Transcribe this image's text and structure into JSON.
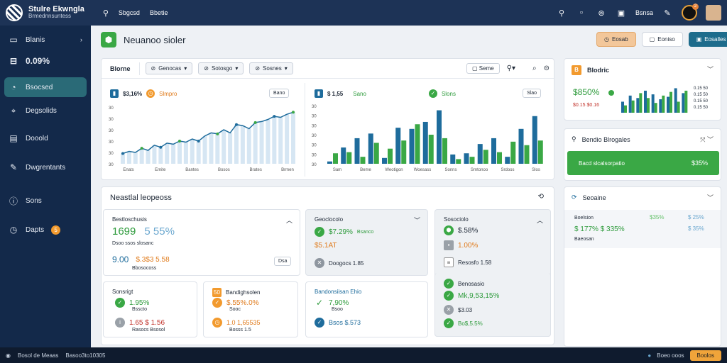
{
  "app": {
    "title": "Stulre Ekwngla",
    "subtitle": "Brmednnsuntess"
  },
  "topnav": [
    {
      "icon": "search-icon",
      "label": "Sbgcsd"
    },
    {
      "icon": "grid-icon",
      "label": "Bbetie"
    }
  ],
  "topbar_right": {
    "user_label": "Bsnsa",
    "notif_count": "2"
  },
  "sidebar": {
    "items": [
      {
        "icon": "folder-icon",
        "label": "Blanis"
      },
      {
        "icon": "inbox-icon",
        "label": "0.09%"
      },
      {
        "icon": "chart-icon",
        "label": "Bsocsed"
      },
      {
        "icon": "tag-icon",
        "label": "Degsolids"
      },
      {
        "icon": "calendar-icon",
        "label": "Dooold"
      },
      {
        "icon": "pen-icon",
        "label": "Dwgrentants"
      },
      {
        "icon": "info-icon",
        "label": "Sons"
      },
      {
        "icon": "clock-icon",
        "label": "Dapts",
        "badge": "5"
      }
    ]
  },
  "header": {
    "title": "Neuanoo sioler",
    "buttons": [
      "Eosab",
      "Eoniso",
      "Eosalles"
    ]
  },
  "charts_panel": {
    "tabs": [
      "Blorne"
    ],
    "selects": [
      "Genocas",
      "Sotosgo",
      "Sosnes"
    ],
    "button": "Seme"
  },
  "chart_data": [
    {
      "type": "area",
      "header_value": "$3,16%",
      "tag": "Slmpro",
      "pill": "Bano",
      "y_ticks": [
        "30",
        "30",
        "30",
        "30",
        "30",
        "30"
      ],
      "x_ticks": [
        "Enats",
        "Emite",
        "Bantes",
        "Bosos",
        "Brates",
        "Brmen"
      ],
      "values": [
        10,
        12,
        11,
        15,
        13,
        18,
        16,
        20,
        19,
        22,
        21,
        24,
        22,
        27,
        30,
        29,
        33,
        30,
        38,
        37,
        34,
        40,
        41,
        43,
        46,
        45,
        48,
        50
      ]
    },
    {
      "type": "bar",
      "header_value": "$ 1,55",
      "tag": "Sano",
      "tag2": "Slons",
      "pill": "Slao",
      "y_ticks": [
        "30",
        "30",
        "30",
        "30",
        "30",
        "30",
        "30"
      ],
      "x_ticks": [
        "Sam",
        "Beme",
        "Weotigon",
        "Woesass",
        "Sonns",
        "Srntonoo",
        "Srdoos",
        "Slos"
      ],
      "series": [
        {
          "name": "blue",
          "color": "#1e6c9c",
          "values": [
            2,
            14,
            22,
            26,
            5,
            31,
            30,
            36,
            46,
            8,
            9,
            17,
            22,
            6,
            30,
            41
          ]
        },
        {
          "name": "green",
          "color": "#3aa845",
          "values": [
            9,
            10,
            6,
            18,
            13,
            20,
            34,
            25,
            22,
            4,
            6,
            12,
            10,
            19,
            16,
            20
          ]
        }
      ]
    },
    {
      "type": "bar",
      "header_value": "$850%",
      "sub_value": "$0.15 $0.16",
      "legend": [
        "0.15 50",
        "0.15 50",
        "0.15 50",
        "0.15 50"
      ],
      "series": [
        {
          "name": "blue",
          "color": "#1e6c9c",
          "values": [
            9,
            14,
            12,
            18,
            15,
            11,
            13,
            20,
            16
          ]
        },
        {
          "name": "green",
          "color": "#3aa845",
          "values": [
            6,
            10,
            16,
            12,
            8,
            14,
            17,
            9,
            18
          ]
        }
      ]
    }
  ],
  "right_panels": {
    "p1": {
      "title": "Blodric"
    },
    "p2": {
      "title": "Bendio Blrogales",
      "bar_label": "Bacd slcalsorpatio",
      "bar_value": "$35%"
    },
    "p3": {
      "title": "Seoaine",
      "label": "Boelsion",
      "v1": "$ 177% $ 335%",
      "v2": "$35%",
      "v3": "$ 25%",
      "v4": "$ 35%",
      "btn": "Baeosan"
    }
  },
  "stats": {
    "title": "Neastlal leopeoss",
    "b1": {
      "title": "Bestloschusis",
      "big": "1699",
      "pct": "5 55%",
      "sub": "Dsoo ssos slosanc",
      "l2": "9.00",
      "l3": "$.3$3 5.58",
      "l4": "Bbosocoss",
      "btn": "Dsa"
    },
    "b2": {
      "title": "Geoclocolo",
      "r1": "$7.29%",
      "r1b": "Bsanco",
      "r2": "$5.1AT",
      "r3": "Doogocs 1.85"
    },
    "b3": {
      "title": "Sosociolo",
      "r1": "$.58%",
      "r2": "1.00%",
      "r3": "Resosfo 1.58"
    },
    "b4": {
      "title": "Sonsrigt",
      "r1": "1.95%",
      "r1b": "Bsscto",
      "r2": "1.65 $ 1.56",
      "r2b": "Rasocs Bsosol"
    },
    "b5": {
      "title": "Bandighsolen",
      "badge": "50",
      "r1": "$.55%.0%",
      "r1b": "Sooc",
      "r2": "1.0 1,65535",
      "r2b": "Bosss 1.5"
    },
    "b6": {
      "title": "Bandonsiisan Ehio",
      "r1": "7,90%",
      "r1b": "Bsoo",
      "r2": "Bsos $.573"
    },
    "b7": {
      "title": "Benosasio",
      "r1": "Mk,9,53,15%",
      "r2": "$3.03",
      "r3": "Bo$,5.5%"
    }
  },
  "bottombar": {
    "left": [
      "Bosol de Meaas",
      "Basoo3to10305"
    ],
    "right_label": "Boeo ooos",
    "right_btn": "Boolos"
  }
}
